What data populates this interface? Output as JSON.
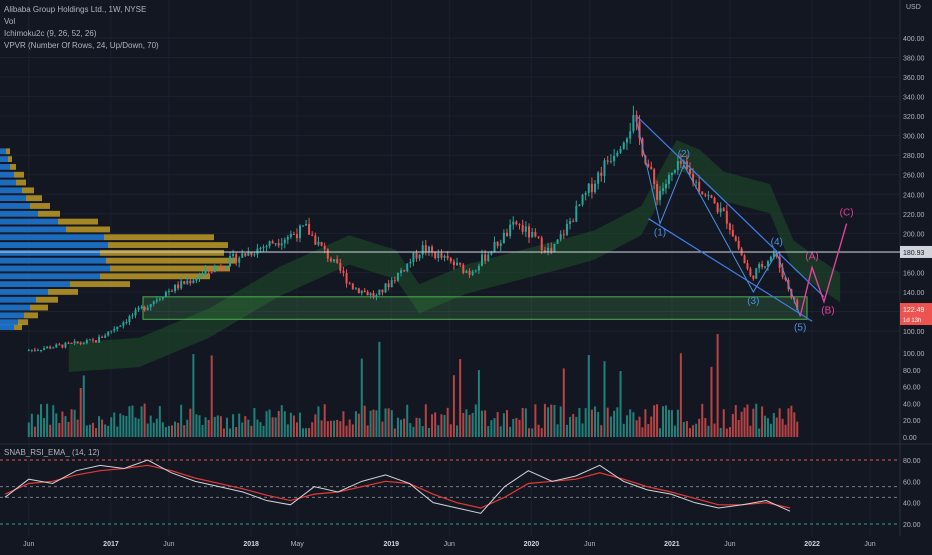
{
  "legend": {
    "symbol": "Alibaba Group Holdings Ltd., 1W, NYSE",
    "vol": "Vol",
    "ichimoku": "Ichimoku2c (9, 26, 52, 26)",
    "vpvr": "VPVR (Number Of Rows, 24, Up/Down, 70)",
    "rsi": "SNAB_RSI_EMA_ (14, 12)"
  },
  "price_axis": {
    "unit": "USD",
    "ticks": [
      "400.00",
      "380.00",
      "360.00",
      "340.00",
      "320.00",
      "300.00",
      "280.00",
      "260.00",
      "240.00",
      "220.00",
      "200.00",
      "160.00",
      "140.00",
      "100.00"
    ]
  },
  "volume_axis": {
    "ticks": [
      "100.00",
      "80.00",
      "60.00",
      "40.00",
      "20.00",
      "0.00"
    ]
  },
  "rsi_axis": {
    "ticks": [
      "80.00",
      "60.00",
      "40.00",
      "20.00"
    ]
  },
  "time_axis": {
    "labels": [
      "Jun",
      "2017",
      "Jun",
      "2018",
      "May",
      "2019",
      "Jun",
      "2020",
      "Jun",
      "2021",
      "Jun",
      "2022",
      "Jun"
    ]
  },
  "price_tags": {
    "horizontal_line": "180.93",
    "last_price": "122.49",
    "countdown": "1d 13h"
  },
  "wave_labels": {
    "impulse": [
      "(1)",
      "(2)",
      "(3)",
      "(4)",
      "(5)"
    ],
    "correction": [
      "(A)",
      "(B)",
      "(C)"
    ]
  },
  "colors": {
    "background": "#131722",
    "up": "#26a69a",
    "down": "#ef5350",
    "channel": "#3f7fe8",
    "wave_blue": "#4a90e2",
    "wave_pink": "#e0449a",
    "support_zone": "#4caf50",
    "cloud": "#1e5a2a",
    "vpvr_blue": "#1f7ad8",
    "vpvr_gold": "#c9a227",
    "rsi_line": "#d1d4dc",
    "rsi_ema": "#e53935"
  },
  "chart_data": {
    "type": "candlestick",
    "title": "Alibaba Group Holdings Ltd., 1W, NYSE",
    "price_range": [
      100,
      400
    ],
    "key_levels": {
      "resistance": 180.93,
      "support_zone": [
        112,
        135
      ]
    },
    "price_path": [
      {
        "date": "2016-06",
        "price": 80
      },
      {
        "date": "2016-12",
        "price": 90
      },
      {
        "date": "2017-06",
        "price": 140
      },
      {
        "date": "2017-12",
        "price": 175
      },
      {
        "date": "2018-06",
        "price": 205
      },
      {
        "date": "2018-10",
        "price": 145
      },
      {
        "date": "2018-12",
        "price": 135
      },
      {
        "date": "2019-04",
        "price": 185
      },
      {
        "date": "2019-08",
        "price": 160
      },
      {
        "date": "2019-12",
        "price": 210
      },
      {
        "date": "2020-03",
        "price": 180
      },
      {
        "date": "2020-07",
        "price": 260
      },
      {
        "date": "2020-10",
        "price": 315
      },
      {
        "date": "2020-12",
        "price": 240
      },
      {
        "date": "2021-02",
        "price": 270
      },
      {
        "date": "2021-06",
        "price": 215
      },
      {
        "date": "2021-08",
        "price": 155
      },
      {
        "date": "2021-10",
        "price": 180
      },
      {
        "date": "2021-12",
        "price": 122.49
      }
    ],
    "waves": [
      {
        "label": "(1)",
        "date": "2020-12",
        "price": 210
      },
      {
        "label": "(2)",
        "date": "2021-02",
        "price": 270
      },
      {
        "label": "(3)",
        "date": "2021-08",
        "price": 140
      },
      {
        "label": "(4)",
        "date": "2021-10",
        "price": 180
      },
      {
        "label": "(5)",
        "date": "2021-12",
        "price": 115
      },
      {
        "label": "(A)",
        "date": "2022-01",
        "price": 165
      },
      {
        "label": "(B)",
        "date": "2022-02",
        "price": 130
      },
      {
        "label": "(C)",
        "date": "2022-04",
        "price": 210
      }
    ],
    "volume_range": [
      0,
      100
    ],
    "rsi": {
      "range": [
        20,
        80
      ],
      "levels": [
        80,
        55,
        45,
        20
      ],
      "values": [
        45,
        62,
        58,
        70,
        75,
        72,
        80,
        68,
        60,
        55,
        50,
        42,
        38,
        55,
        50,
        60,
        66,
        58,
        40,
        35,
        30,
        55,
        70,
        60,
        65,
        75,
        60,
        52,
        48,
        40,
        35,
        38,
        42,
        32
      ],
      "ema": [
        48,
        58,
        60,
        66,
        70,
        72,
        75,
        70,
        63,
        58,
        53,
        47,
        42,
        48,
        50,
        55,
        60,
        58,
        48,
        40,
        35,
        45,
        58,
        60,
        62,
        68,
        62,
        55,
        50,
        44,
        38,
        38,
        40,
        35
      ]
    }
  }
}
